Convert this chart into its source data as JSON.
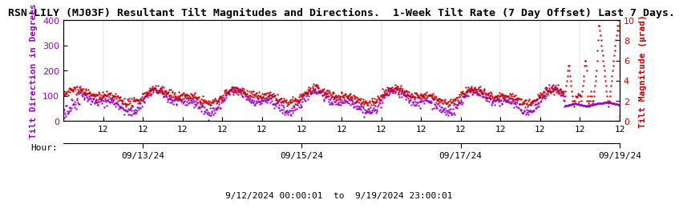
{
  "title": "RSN-LILY (MJ03F) Resultant Tilt Magnitudes and Directions.  1-Week Tilt Rate (7 Day Offset) Last 7 Days.",
  "xlabel_hour": "Hour:",
  "date_label": "9/12/2024 00:00:01  to  9/19/2024 23:00:01",
  "ylabel_left": "Tilt Direction in Degrees",
  "ylabel_right": "Tilt Magnitude (μrad)",
  "ylim_left": [
    0,
    400
  ],
  "ylim_right": [
    0,
    10
  ],
  "yticks_left": [
    0,
    100,
    200,
    300,
    400
  ],
  "yticks_right": [
    0,
    2,
    4,
    6,
    8,
    10
  ],
  "date_ticks": [
    "09/13/24",
    "09/15/24",
    "09/17/24",
    "09/19/24"
  ],
  "hour_ticks_labels": [
    "12",
    "12",
    "12",
    "12",
    "12",
    "12",
    "12",
    "12"
  ],
  "n_days": 8,
  "color_direction": "#9900cc",
  "color_magnitude": "#cc0000",
  "bg_color": "#ffffff",
  "title_fontsize": 9.5,
  "axis_label_fontsize": 8,
  "tick_fontsize": 8
}
